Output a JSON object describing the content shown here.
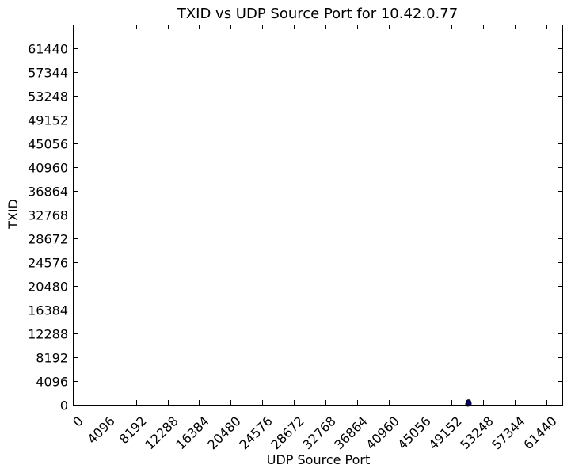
{
  "chart_data": {
    "type": "scatter",
    "title": "TXID vs UDP Source Port for 10.42.0.77",
    "xlabel": "UDP Source Port",
    "ylabel": "TXID",
    "xlim": [
      0,
      63488
    ],
    "ylim": [
      0,
      65536
    ],
    "x_ticks": [
      "0",
      "4096",
      "8192",
      "12288",
      "16384",
      "20480",
      "24576",
      "28672",
      "32768",
      "36864",
      "40960",
      "45056",
      "49152",
      "53248",
      "57344",
      "61440"
    ],
    "y_ticks": [
      "0",
      "4096",
      "8192",
      "12288",
      "16384",
      "20480",
      "24576",
      "28672",
      "32768",
      "36864",
      "40960",
      "45056",
      "49152",
      "53248",
      "57344",
      "61440"
    ],
    "grid": false,
    "series": [
      {
        "color": "#00007f",
        "x": [
          51250,
          51300,
          51330,
          51380
        ],
        "y": [
          120,
          300,
          480,
          200
        ]
      }
    ]
  }
}
